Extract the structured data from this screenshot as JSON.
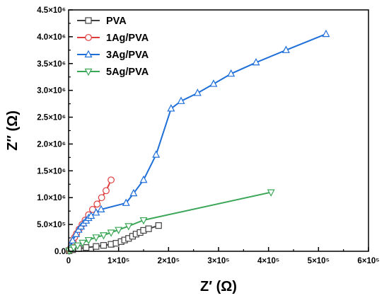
{
  "chart_data": {
    "type": "scatter",
    "xlabel": "Z′ (Ω)",
    "ylabel": "Z″ (Ω)",
    "xlim": [
      0,
      600000
    ],
    "ylim": [
      0,
      4500000
    ],
    "x_ticks": [
      0,
      100000,
      200000,
      300000,
      400000,
      500000,
      600000
    ],
    "x_tick_labels": [
      "0",
      "1×10⁵",
      "2×10⁵",
      "3×10⁵",
      "4×10⁵",
      "5×10⁵",
      "6×10⁵"
    ],
    "y_ticks": [
      0,
      500000,
      1000000,
      1500000,
      2000000,
      2500000,
      3000000,
      3500000,
      4000000,
      4500000
    ],
    "y_tick_labels": [
      "0.0",
      "5.0×10⁵",
      "1.0×10⁶",
      "1.5×10⁶",
      "2.0×10⁶",
      "2.5×10⁶",
      "3.0×10⁶",
      "3.5×10⁶",
      "4.0×10⁶",
      "4.5×10⁶"
    ],
    "grid": false,
    "legend_position": "top-left",
    "series": [
      {
        "name": "PVA",
        "color": "#404040",
        "marker": "square",
        "x": [
          1000,
          8000,
          20000,
          35000,
          55000,
          70000,
          85000,
          95000,
          105000,
          112000,
          120000,
          128000,
          135000,
          143000,
          150000,
          160000,
          180000
        ],
        "y": [
          10000,
          30000,
          50000,
          70000,
          90000,
          110000,
          130000,
          150000,
          180000,
          210000,
          240000,
          280000,
          320000,
          350000,
          390000,
          420000,
          480000
        ]
      },
      {
        "name": "1Ag/PVA",
        "color": "#e03c3c",
        "marker": "circle",
        "x": [
          2000,
          4000,
          6000,
          9000,
          12000,
          16000,
          21000,
          27000,
          33000,
          40000,
          48000,
          57000,
          66000,
          75000,
          85000
        ],
        "y": [
          20000,
          60000,
          110000,
          180000,
          260000,
          330000,
          410000,
          500000,
          580000,
          680000,
          780000,
          880000,
          1000000,
          1130000,
          1330000
        ]
      },
      {
        "name": "3Ag/PVA",
        "color": "#1f6fd9",
        "marker": "triangle-up",
        "x": [
          3000,
          8000,
          15000,
          20000,
          25000,
          30000,
          35000,
          40000,
          45000,
          55000,
          65000,
          115000,
          130000,
          150000,
          175000,
          205000,
          225000,
          258000,
          290000,
          325000,
          375000,
          435000,
          515000
        ],
        "y": [
          60000,
          200000,
          320000,
          400000,
          460000,
          520000,
          570000,
          620000,
          660000,
          720000,
          780000,
          900000,
          1080000,
          1330000,
          1800000,
          2660000,
          2800000,
          2950000,
          3120000,
          3310000,
          3520000,
          3750000,
          4050000
        ]
      },
      {
        "name": "5Ag/PVA",
        "color": "#3aa657",
        "marker": "triangle-down",
        "x": [
          1000,
          5000,
          10000,
          18000,
          28000,
          40000,
          55000,
          70000,
          85000,
          100000,
          120000,
          150000,
          405000
        ],
        "y": [
          10000,
          30000,
          70000,
          110000,
          160000,
          210000,
          260000,
          300000,
          350000,
          400000,
          470000,
          580000,
          1100000
        ]
      }
    ]
  }
}
